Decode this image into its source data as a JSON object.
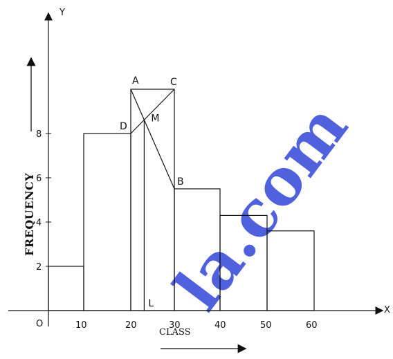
{
  "chart_data": {
    "type": "bar",
    "variant": "histogram",
    "bins": [
      {
        "from": 0,
        "to": 10,
        "value": 2
      },
      {
        "from": 10,
        "to": 20,
        "value": 8
      },
      {
        "from": 20,
        "to": 30,
        "value": 10
      },
      {
        "from": 30,
        "to": 40,
        "value": 5.5
      },
      {
        "from": 40,
        "to": 50,
        "value": 4.3
      },
      {
        "from": 50,
        "to": 60,
        "value": 3.6
      }
    ],
    "x_ticks": [
      "10",
      "20",
      "30",
      "40",
      "50",
      "60"
    ],
    "y_ticks": [
      "2",
      "4",
      "6",
      "8"
    ],
    "origin_label": "O",
    "x_axis_name": "X",
    "y_axis_name": "Y",
    "xlabel": "CLASS",
    "ylabel": "FREQUENCY",
    "xlim": [
      0,
      60
    ],
    "ylim": [
      0,
      10
    ],
    "mode_x": 23.5,
    "construction_points": {
      "A": "A",
      "B": "B",
      "C": "C",
      "D": "D",
      "M": "M",
      "L": "L"
    }
  },
  "watermark": {
    "text": "la.com",
    "color": "#2a3fd6"
  }
}
